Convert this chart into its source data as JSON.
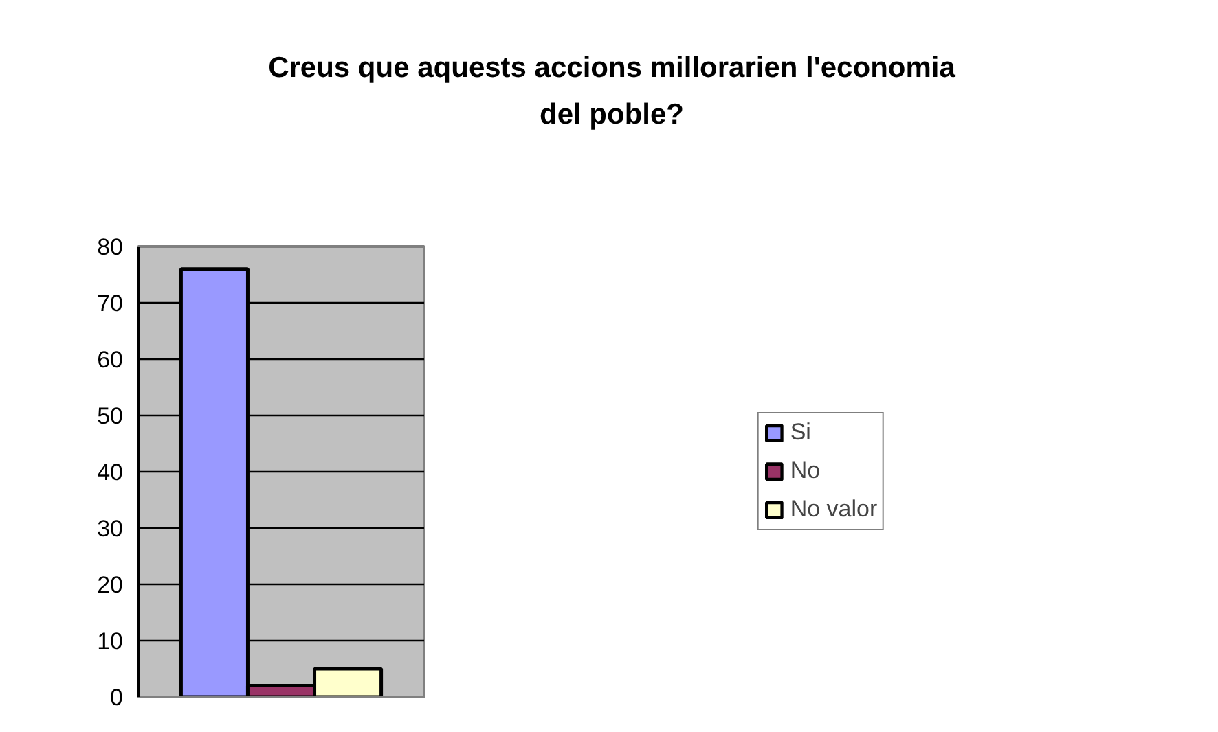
{
  "chart_data": {
    "type": "bar",
    "title": "Creus que aquests accions millorarien l'economia del poble?",
    "categories": [
      null
    ],
    "series": [
      {
        "name": "Si",
        "color": "#9999ff",
        "values": [
          76
        ]
      },
      {
        "name": "No",
        "color": "#993366",
        "values": [
          2
        ]
      },
      {
        "name": "No valor",
        "color": "#ffffcc",
        "values": [
          5
        ]
      }
    ],
    "ylim": [
      0,
      80
    ],
    "yticks": [
      0,
      10,
      20,
      30,
      40,
      50,
      60,
      70,
      80
    ],
    "grid": "y",
    "legend": "right"
  }
}
